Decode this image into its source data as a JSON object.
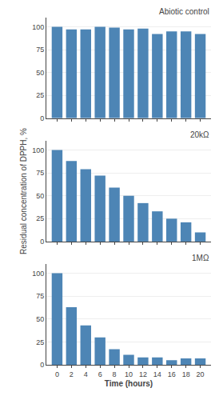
{
  "chart_data": [
    {
      "type": "bar",
      "title": "Abiotic control",
      "x": [
        0,
        2,
        4,
        6,
        8,
        10,
        12,
        14,
        16,
        18,
        20
      ],
      "values": [
        100,
        97,
        97,
        100,
        99,
        97,
        98,
        92,
        95,
        95,
        92
      ],
      "color": "#4d85b5",
      "xlim": [
        -1.5,
        21.5
      ],
      "xticks": [
        0,
        2,
        4,
        6,
        8,
        10,
        12,
        14,
        16,
        18,
        20
      ],
      "ylim": [
        0,
        110
      ],
      "yticks": [
        0,
        25,
        50,
        75,
        100
      ],
      "grid": true,
      "tick_labels": "y"
    },
    {
      "type": "bar",
      "title": "20kΩ",
      "ylabel": "Residual concentration of DPPH, %",
      "x": [
        0,
        2,
        4,
        6,
        8,
        10,
        12,
        14,
        16,
        18,
        20
      ],
      "values": [
        100,
        88,
        79,
        72,
        59,
        50,
        42,
        33,
        25,
        21,
        10
      ],
      "color": "#4d85b5",
      "xlim": [
        -1.5,
        21.5
      ],
      "xticks": [
        0,
        2,
        4,
        6,
        8,
        10,
        12,
        14,
        16,
        18,
        20
      ],
      "ylim": [
        0,
        110
      ],
      "yticks": [
        0,
        25,
        50,
        75,
        100
      ],
      "grid": true,
      "tick_labels": "y"
    },
    {
      "type": "bar",
      "title": "1MΩ",
      "xlabel": "Time (hours)",
      "x": [
        0,
        2,
        4,
        6,
        8,
        10,
        12,
        14,
        16,
        18,
        20
      ],
      "values": [
        100,
        63,
        43,
        30,
        17,
        11,
        8,
        8,
        5,
        7,
        7
      ],
      "color": "#4d85b5",
      "xlim": [
        -1.5,
        21.5
      ],
      "xticks": [
        0,
        2,
        4,
        6,
        8,
        10,
        12,
        14,
        16,
        18,
        20
      ],
      "ylim": [
        0,
        110
      ],
      "yticks": [
        0,
        25,
        50,
        75,
        100
      ],
      "grid": true
    }
  ]
}
